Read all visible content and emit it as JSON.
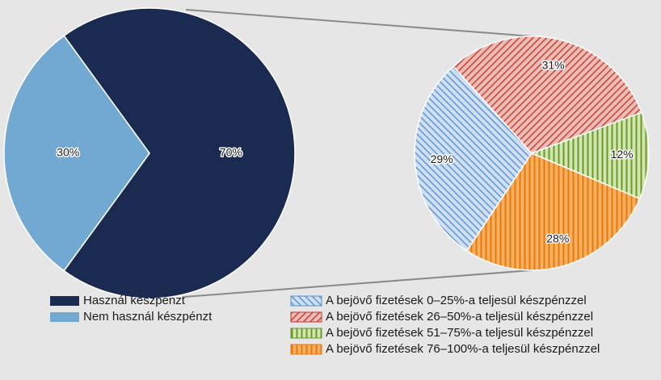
{
  "chart_data": [
    {
      "type": "pie",
      "categories": [
        "Használ készpénzt",
        "Nem használ készpénzt"
      ],
      "values": [
        70,
        30
      ],
      "value_labels": [
        "70%",
        "30%"
      ],
      "colors": [
        "#1b2a50",
        "#72a9d2"
      ]
    },
    {
      "type": "pie",
      "categories": [
        "A bejövő fizetések 0–25%-a teljesül készpénzzel",
        "A bejövő fizetések 26–50%-a teljesül készpénzzel",
        "A bejövő fizetések 51–75%-a teljesül készpénzzel",
        "A bejövő fizetések 76–100%-a teljesül készpénzzel"
      ],
      "values": [
        29,
        31,
        12,
        28
      ],
      "value_labels": [
        "29%",
        "31%",
        "12%",
        "28%"
      ],
      "colors": [
        "#cfe0f3",
        "#ecbcb6",
        "#d3e6b0",
        "#f8b060"
      ],
      "hatch_colors": [
        "#5b8fcc",
        "#c0392b",
        "#6a9a2a",
        "#e87810"
      ],
      "hatch": [
        "backslash",
        "slash",
        "vertical",
        "vertical"
      ]
    }
  ]
}
